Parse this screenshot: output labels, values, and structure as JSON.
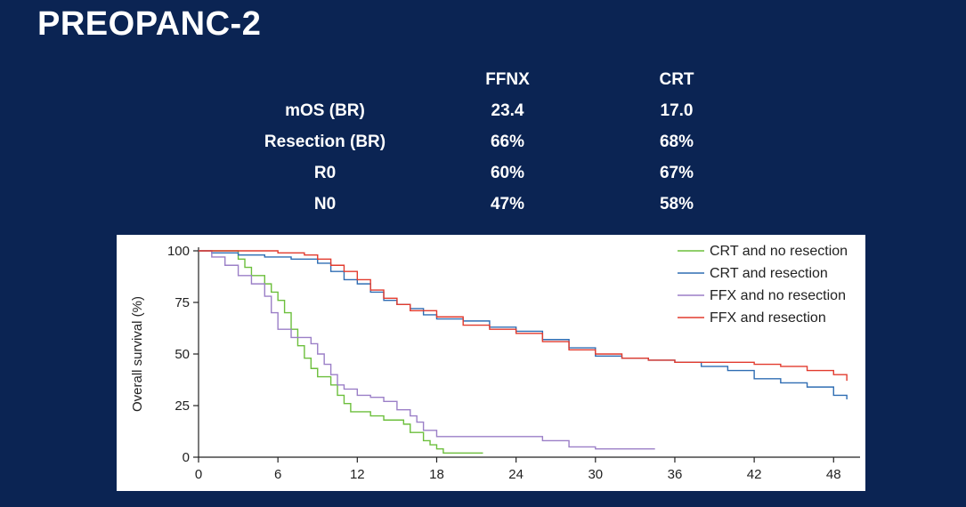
{
  "slide": {
    "title": "PREOPANC-2"
  },
  "table": {
    "headers": [
      "",
      "FFNX",
      "CRT"
    ],
    "rows": [
      [
        "mOS (BR)",
        "23.4",
        "17.0"
      ],
      [
        "Resection (BR)",
        "66%",
        "68%"
      ],
      [
        "R0",
        "60%",
        "67%"
      ],
      [
        "N0",
        "47%",
        "58%"
      ]
    ]
  },
  "chart_data": {
    "type": "line",
    "xlabel": "",
    "ylabel": "Overall survival (%)",
    "xlim": [
      0,
      50
    ],
    "ylim": [
      0,
      100
    ],
    "xticks": [
      0,
      6,
      12,
      18,
      24,
      30,
      36,
      42,
      48
    ],
    "yticks": [
      0,
      25,
      50,
      75,
      100
    ],
    "legend_position": "top-right",
    "series": [
      {
        "name": "CRT and no resection",
        "color": "#6cbf3c",
        "x": [
          0,
          2,
          3,
          3.5,
          4,
          5,
          5.5,
          6,
          6.5,
          7,
          7.5,
          8,
          8.5,
          9,
          10,
          10.5,
          11,
          11.5,
          12,
          13,
          14,
          15,
          15.5,
          16,
          17,
          17.5,
          18,
          18.5,
          21.5
        ],
        "y": [
          100,
          100,
          96,
          92,
          88,
          84,
          80,
          76,
          70,
          62,
          54,
          48,
          43,
          39,
          35,
          30,
          26,
          22,
          22,
          20,
          18,
          18,
          16,
          12,
          8,
          6,
          4,
          2,
          2
        ]
      },
      {
        "name": "CRT and resection",
        "color": "#2f6db3",
        "x": [
          0,
          1,
          3,
          5,
          7,
          9,
          10,
          11,
          12,
          13,
          14,
          15,
          16,
          17,
          18,
          20,
          22,
          24,
          26,
          28,
          30,
          32,
          34,
          36,
          38,
          40,
          42,
          44,
          46,
          48,
          49
        ],
        "y": [
          100,
          99,
          98,
          97,
          96,
          94,
          90,
          86,
          84,
          80,
          76,
          74,
          72,
          69,
          67,
          66,
          63,
          61,
          57,
          53,
          49,
          48,
          47,
          46,
          44,
          42,
          38,
          36,
          34,
          30,
          28
        ]
      },
      {
        "name": "FFX and no resection",
        "color": "#9b7fc7",
        "x": [
          0,
          1,
          2,
          3,
          4,
          5,
          5.5,
          6,
          7,
          8,
          8.5,
          9,
          9.5,
          10,
          10.5,
          11,
          12,
          13,
          14,
          15,
          16,
          16.5,
          17,
          18,
          19,
          20,
          22,
          24,
          26,
          28,
          29,
          30,
          34.5
        ],
        "y": [
          100,
          97,
          93,
          88,
          84,
          78,
          70,
          62,
          58,
          58,
          55,
          50,
          45,
          40,
          35,
          33,
          30,
          29,
          27,
          23,
          20,
          17,
          13,
          10,
          10,
          10,
          10,
          10,
          8,
          5,
          5,
          4,
          4
        ]
      },
      {
        "name": "FFX and resection",
        "color": "#e23b2e",
        "x": [
          0,
          2,
          4,
          6,
          8,
          9,
          10,
          11,
          12,
          13,
          14,
          15,
          16,
          18,
          20,
          22,
          24,
          26,
          28,
          30,
          32,
          34,
          36,
          38,
          40,
          42,
          44,
          46,
          48,
          49
        ],
        "y": [
          100,
          100,
          100,
          99,
          98,
          96,
          93,
          90,
          86,
          81,
          77,
          74,
          71,
          68,
          64,
          62,
          60,
          56,
          52,
          50,
          48,
          47,
          46,
          46,
          46,
          45,
          44,
          42,
          40,
          37
        ]
      }
    ]
  }
}
